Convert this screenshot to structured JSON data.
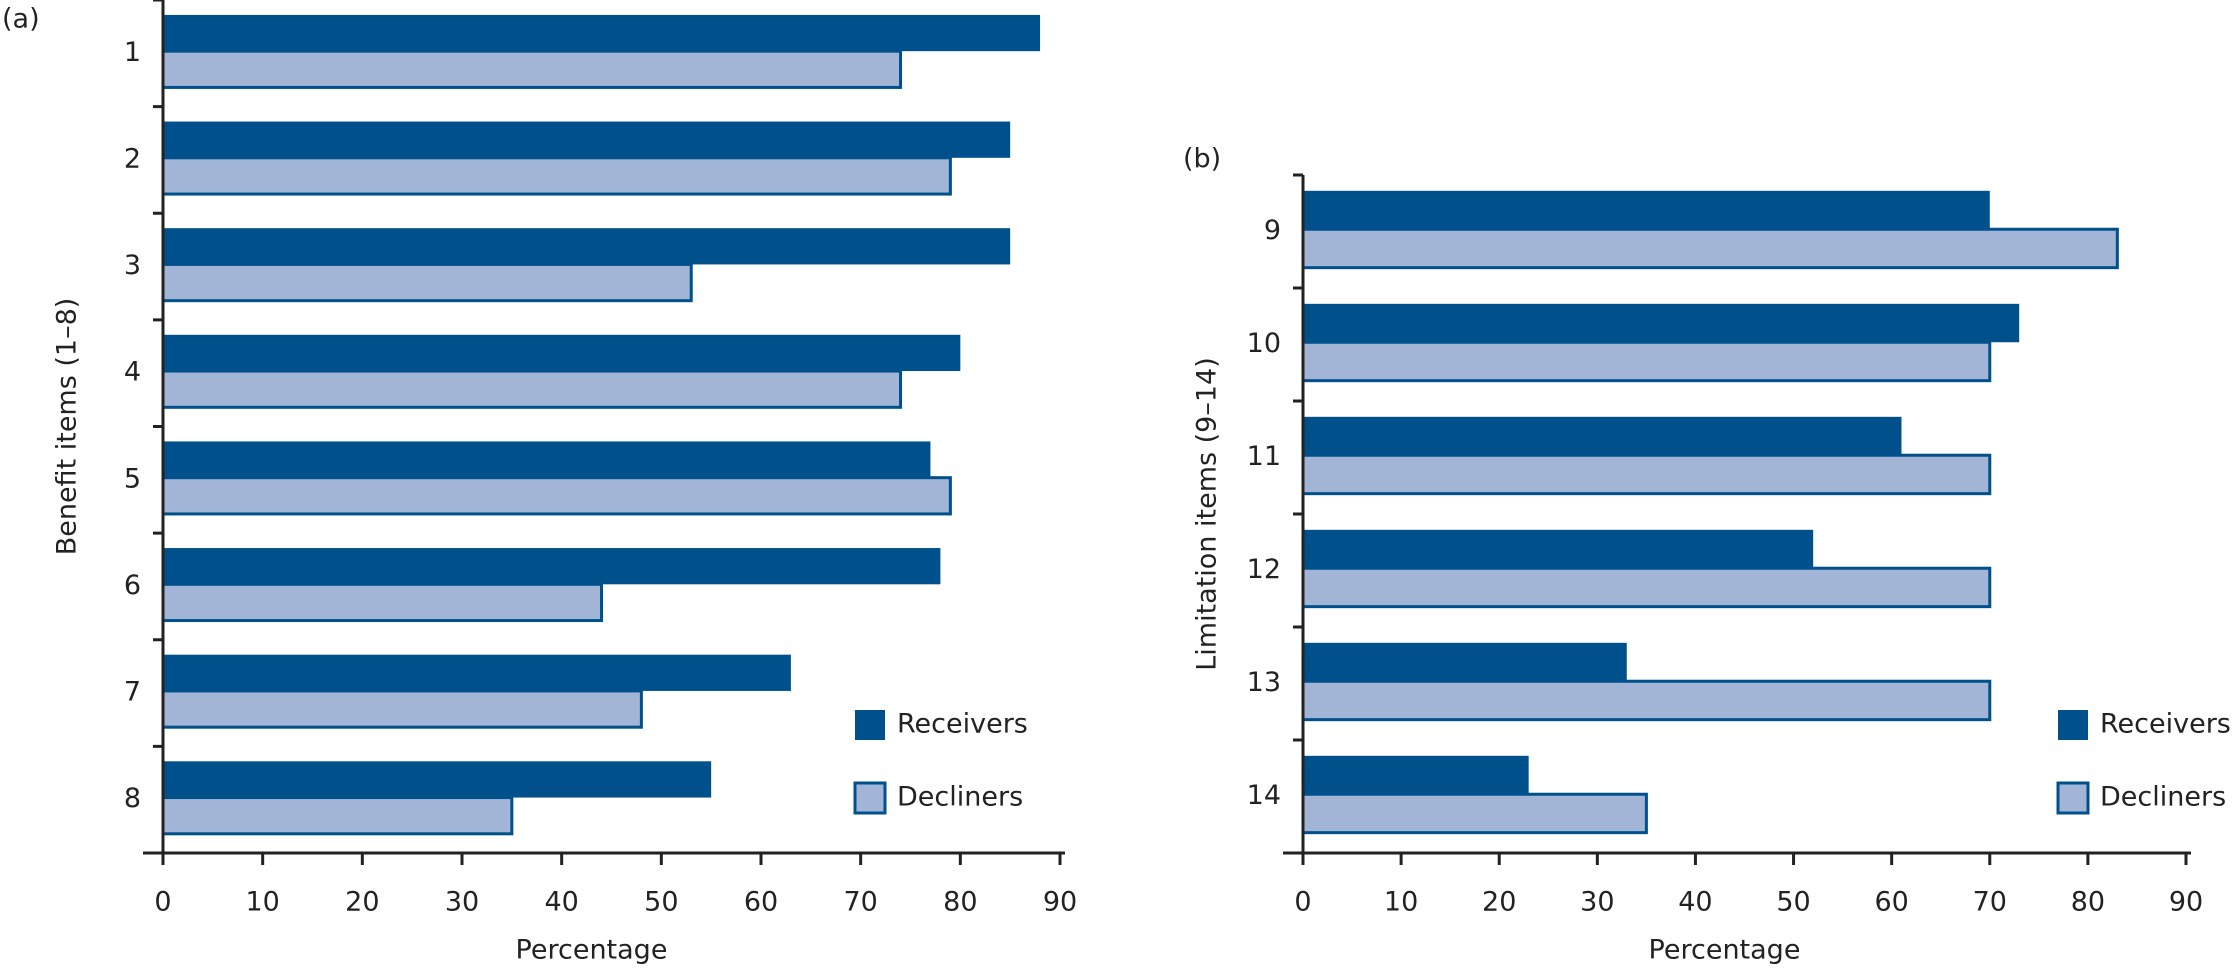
{
  "chart_data": [
    {
      "type": "bar",
      "orientation": "horizontal",
      "panel_label": "(a)",
      "y_label": "Benefit items (1–8)",
      "x_label": "Percentage",
      "categories": [
        "1",
        "2",
        "3",
        "4",
        "5",
        "6",
        "7",
        "8"
      ],
      "series": [
        {
          "name": "Receivers",
          "color": "#00508c",
          "values": [
            88,
            85,
            85,
            80,
            77,
            78,
            63,
            55
          ]
        },
        {
          "name": "Decliners",
          "color": "#a3b5d6",
          "values": [
            74,
            79,
            53,
            74,
            79,
            44,
            48,
            35
          ]
        }
      ],
      "xlim": [
        0,
        90
      ],
      "xticks": [
        0,
        10,
        20,
        30,
        40,
        50,
        60,
        70,
        80,
        90
      ],
      "legend": "lower right"
    },
    {
      "type": "bar",
      "orientation": "horizontal",
      "panel_label": "(b)",
      "y_label": "Limitation items (9–14)",
      "x_label": "Percentage",
      "categories": [
        "9",
        "10",
        "11",
        "12",
        "13",
        "14"
      ],
      "series": [
        {
          "name": "Receivers",
          "color": "#00508c",
          "values": [
            70,
            73,
            61,
            52,
            33,
            23
          ]
        },
        {
          "name": "Decliners",
          "color": "#a3b5d6",
          "values": [
            83,
            70,
            70,
            70,
            70,
            35
          ]
        }
      ],
      "xlim": [
        0,
        90
      ],
      "xticks": [
        0,
        10,
        20,
        30,
        40,
        50,
        60,
        70,
        80,
        90
      ],
      "legend": "lower right"
    }
  ]
}
